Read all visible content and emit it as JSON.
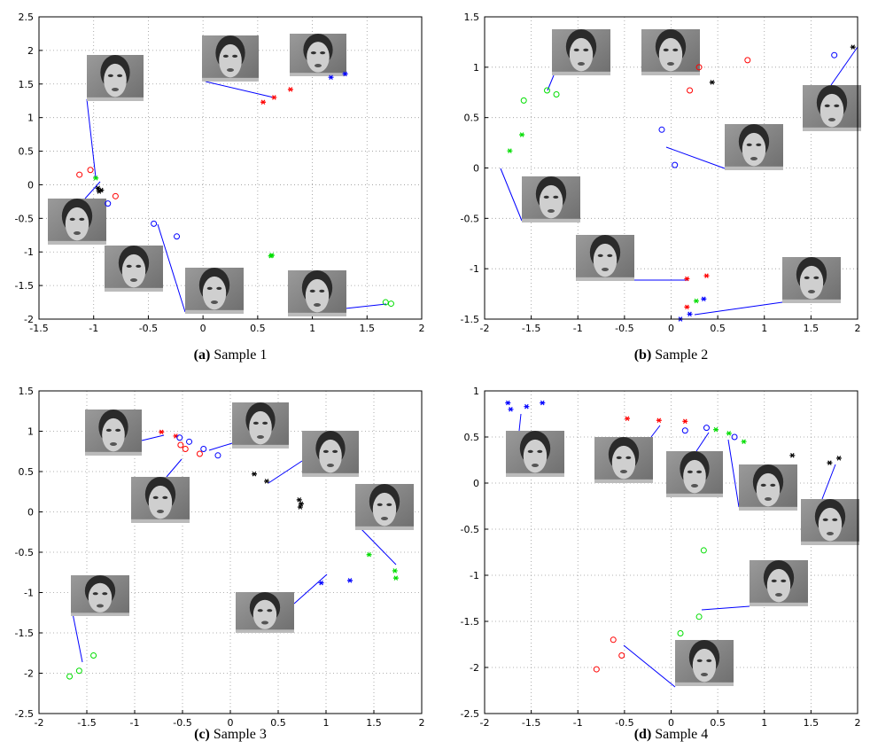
{
  "chart_data": [
    {
      "type": "scatter",
      "label": "(a)",
      "caption": "Sample 1",
      "xlim": [
        -1.5,
        2
      ],
      "ylim": [
        -2,
        2.5
      ],
      "xticks": [
        -1.5,
        -1,
        -0.5,
        0,
        0.5,
        1,
        1.5,
        2
      ],
      "yticks": [
        -2,
        -1.5,
        -1,
        -0.5,
        0,
        0.5,
        1,
        1.5,
        2,
        2.5
      ],
      "grid": true,
      "series": [
        {
          "color": "#ff0000",
          "marker": "star",
          "x": [
            0.55,
            0.65,
            0.8
          ],
          "y": [
            1.23,
            1.3,
            1.42
          ]
        },
        {
          "color": "#0000ff",
          "marker": "star",
          "x": [
            1.17,
            1.3
          ],
          "y": [
            1.6,
            1.65
          ]
        },
        {
          "color": "#ff0000",
          "marker": "circle",
          "x": [
            -1.13,
            -1.03,
            -0.8
          ],
          "y": [
            0.15,
            0.22,
            -0.17
          ]
        },
        {
          "color": "#00dd00",
          "marker": "star",
          "x": [
            -0.98,
            0.62,
            0.63
          ],
          "y": [
            0.1,
            -1.06,
            -1.05
          ]
        },
        {
          "color": "#000000",
          "marker": "star",
          "x": [
            -0.96,
            -0.95,
            -0.93
          ],
          "y": [
            -0.05,
            -0.1,
            -0.08
          ]
        },
        {
          "color": "#0000ff",
          "marker": "circle",
          "x": [
            -0.87,
            -0.45,
            -0.24
          ],
          "y": [
            -0.28,
            -0.58,
            -0.77
          ]
        },
        {
          "color": "#00dd00",
          "marker": "circle",
          "x": [
            1.67,
            1.72
          ],
          "y": [
            -1.75,
            -1.77
          ]
        }
      ]
    },
    {
      "type": "scatter",
      "label": "(b)",
      "caption": "Sample 2",
      "xlim": [
        -2,
        2
      ],
      "ylim": [
        -1.5,
        1.5
      ],
      "xticks": [
        -2,
        -1.5,
        -1,
        -0.5,
        0,
        0.5,
        1,
        1.5,
        2
      ],
      "yticks": [
        -1.5,
        -1,
        -0.5,
        0,
        0.5,
        1,
        1.5
      ],
      "grid": true,
      "series": [
        {
          "color": "#ff0000",
          "marker": "circle",
          "x": [
            0.3,
            0.82,
            0.2
          ],
          "y": [
            1.0,
            1.07,
            0.77
          ]
        },
        {
          "color": "#000000",
          "marker": "star",
          "x": [
            0.44,
            1.95
          ],
          "y": [
            0.85,
            1.2
          ]
        },
        {
          "color": "#0000ff",
          "marker": "circle",
          "x": [
            1.75,
            -0.1,
            0.04
          ],
          "y": [
            1.12,
            0.38,
            0.03
          ]
        },
        {
          "color": "#00dd00",
          "marker": "circle",
          "x": [
            -1.33,
            -1.23,
            -1.58
          ],
          "y": [
            0.77,
            0.73,
            0.67
          ]
        },
        {
          "color": "#00dd00",
          "marker": "star",
          "x": [
            -1.6,
            -1.73,
            0.27
          ],
          "y": [
            0.33,
            0.17,
            -1.32
          ]
        },
        {
          "color": "#ff0000",
          "marker": "star",
          "x": [
            0.17,
            0.38,
            0.17
          ],
          "y": [
            -1.1,
            -1.07,
            -1.38
          ]
        },
        {
          "color": "#0000ff",
          "marker": "star",
          "x": [
            0.35,
            0.2,
            0.1
          ],
          "y": [
            -1.3,
            -1.45,
            -1.5
          ]
        }
      ]
    },
    {
      "type": "scatter",
      "label": "(c)",
      "caption": "Sample 3",
      "xlim": [
        -2,
        2
      ],
      "ylim": [
        -2.5,
        1.5
      ],
      "xticks": [
        -2,
        -1.5,
        -1,
        -0.5,
        0,
        0.5,
        1,
        1.5,
        2
      ],
      "yticks": [
        -2.5,
        -2,
        -1.5,
        -1,
        -0.5,
        0,
        0.5,
        1,
        1.5
      ],
      "grid": true,
      "series": [
        {
          "color": "#ff0000",
          "marker": "star",
          "x": [
            -0.72,
            -0.57
          ],
          "y": [
            0.99,
            0.94
          ]
        },
        {
          "color": "#ff0000",
          "marker": "circle",
          "x": [
            -0.52,
            -0.47,
            -0.32
          ],
          "y": [
            0.83,
            0.78,
            0.72
          ]
        },
        {
          "color": "#0000ff",
          "marker": "circle",
          "x": [
            -0.53,
            -0.43,
            -0.28,
            -0.13
          ],
          "y": [
            0.92,
            0.87,
            0.78,
            0.7
          ]
        },
        {
          "color": "#000000",
          "marker": "star",
          "x": [
            0.25,
            0.38,
            0.72,
            0.74,
            0.73
          ],
          "y": [
            0.47,
            0.38,
            0.15,
            0.1,
            0.06
          ]
        },
        {
          "color": "#00dd00",
          "marker": "star",
          "x": [
            1.45,
            1.72,
            1.73
          ],
          "y": [
            -0.53,
            -0.73,
            -0.82
          ]
        },
        {
          "color": "#0000ff",
          "marker": "star",
          "x": [
            0.95,
            1.25
          ],
          "y": [
            -0.88,
            -0.85
          ]
        },
        {
          "color": "#00dd00",
          "marker": "circle",
          "x": [
            -1.43,
            -1.58,
            -1.68
          ],
          "y": [
            -1.78,
            -1.97,
            -2.04
          ]
        }
      ]
    },
    {
      "type": "scatter",
      "label": "(d)",
      "caption": "Sample 4",
      "xlim": [
        -2,
        2
      ],
      "ylim": [
        -2.5,
        1
      ],
      "xticks": [
        -2,
        -1.5,
        -1,
        -0.5,
        0,
        0.5,
        1,
        1.5,
        2
      ],
      "yticks": [
        -2.5,
        -2,
        -1.5,
        -1,
        -0.5,
        0,
        0.5,
        1
      ],
      "grid": true,
      "series": [
        {
          "color": "#0000ff",
          "marker": "star",
          "x": [
            -1.75,
            -1.72,
            -1.55,
            -1.38
          ],
          "y": [
            0.87,
            0.8,
            0.83,
            0.87
          ]
        },
        {
          "color": "#ff0000",
          "marker": "star",
          "x": [
            -0.47,
            -0.13,
            0.15
          ],
          "y": [
            0.7,
            0.68,
            0.67
          ]
        },
        {
          "color": "#0000ff",
          "marker": "circle",
          "x": [
            0.15,
            0.38,
            0.68
          ],
          "y": [
            0.57,
            0.6,
            0.5
          ]
        },
        {
          "color": "#00dd00",
          "marker": "star",
          "x": [
            0.48,
            0.62,
            0.78
          ],
          "y": [
            0.58,
            0.54,
            0.45
          ]
        },
        {
          "color": "#000000",
          "marker": "star",
          "x": [
            1.3,
            1.7,
            1.8
          ],
          "y": [
            0.3,
            0.22,
            0.27
          ]
        },
        {
          "color": "#00dd00",
          "marker": "circle",
          "x": [
            0.35,
            0.3,
            0.1
          ],
          "y": [
            -0.73,
            -1.45,
            -1.63
          ]
        },
        {
          "color": "#ff0000",
          "marker": "circle",
          "x": [
            -0.62,
            -0.8,
            -0.53
          ],
          "y": [
            -1.7,
            -2.02,
            -1.87
          ]
        }
      ]
    }
  ]
}
